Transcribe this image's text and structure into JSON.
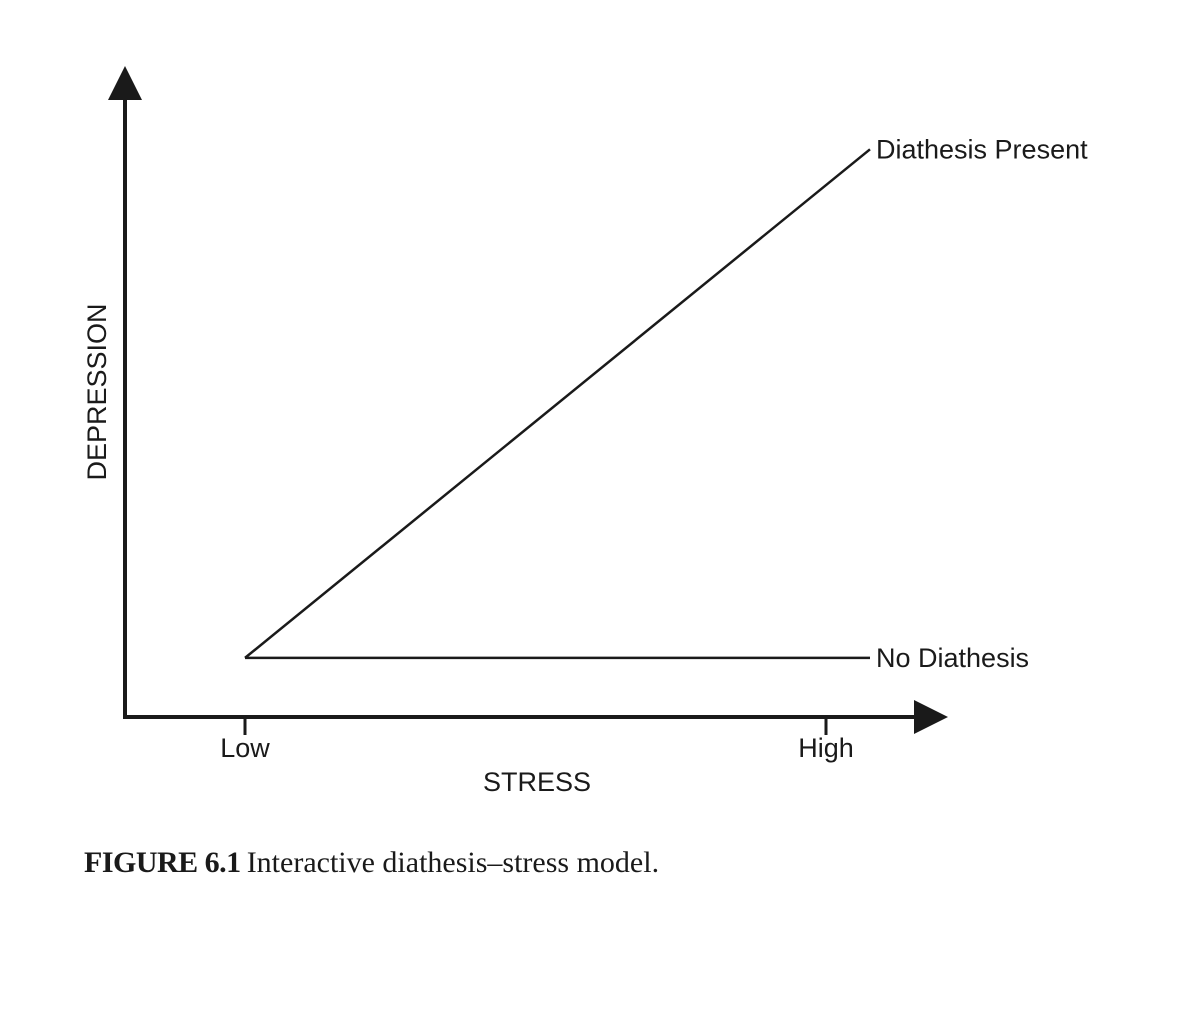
{
  "chart_data": {
    "type": "line",
    "xlabel": "STRESS",
    "ylabel": "DEPRESSION",
    "x_ticks": [
      "Low",
      "High"
    ],
    "series": [
      {
        "name": "Diathesis Present",
        "x": [
          "Low",
          "High"
        ],
        "y": [
          0.1,
          0.9
        ]
      },
      {
        "name": "No Diathesis",
        "x": [
          "Low",
          "High"
        ],
        "y": [
          0.1,
          0.1
        ]
      }
    ],
    "grid": false,
    "legend": "none",
    "line_color": "#1a1a1a"
  },
  "caption": {
    "figure_number": "FIGURE 6.1",
    "text": "Interactive diathesis–stress model."
  }
}
